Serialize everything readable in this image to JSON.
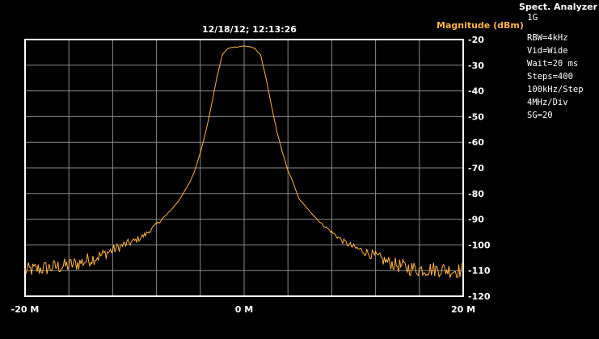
{
  "timestamp": "12/18/12; 12:13:26",
  "panel": {
    "title": "Spect. Analyzer",
    "subtitle": "1G",
    "settings": [
      "RBW=4kHz",
      "Vid=Wide",
      "Wait=20 ms",
      "Steps=400",
      "100kHz/Step",
      "4MHz/Div",
      "SG=20"
    ]
  },
  "colors": {
    "trace": "#ffb347",
    "grid": "#8a8a8a",
    "background": "#000000",
    "text": "#ffffff"
  },
  "chart_data": {
    "type": "line",
    "title": "",
    "xlabel": "",
    "ylabel": "Magnitude (dBm)",
    "xlim": [
      -20,
      20
    ],
    "ylim": [
      -120,
      -20
    ],
    "x_ticks": [
      {
        "value": -20,
        "label": "-20 M"
      },
      {
        "value": 0,
        "label": "0 M"
      },
      {
        "value": 20,
        "label": "20 M"
      }
    ],
    "y_ticks": [
      "-20",
      "-30",
      "-40",
      "-50",
      "-60",
      "-70",
      "-80",
      "-90",
      "-100",
      "-110",
      "-120"
    ],
    "x_divisions": 10,
    "y_divisions": 10,
    "grid": true,
    "series": [
      {
        "x": [
          -20,
          -19,
          -18,
          -17,
          -16,
          -15,
          -14,
          -13,
          -12,
          -11,
          -10,
          -9,
          -8,
          -7,
          -6,
          -5,
          -4.5,
          -4,
          -3.5,
          -3,
          -2.5,
          -2,
          -1.5,
          -1,
          -0.5,
          0,
          0.5,
          1,
          1.5,
          2,
          2.5,
          3,
          3.5,
          4,
          4.5,
          5,
          6,
          7,
          8,
          9,
          10,
          11,
          12,
          13,
          14,
          15,
          16,
          17,
          18,
          19,
          20
        ],
        "values": [
          -110,
          -109.5,
          -109,
          -108.5,
          -108,
          -107,
          -105.5,
          -104,
          -102,
          -100,
          -98.5,
          -96,
          -92,
          -88,
          -83,
          -76,
          -71,
          -64,
          -56,
          -46,
          -35,
          -26,
          -23.5,
          -23,
          -22.8,
          -22.5,
          -22.8,
          -23.5,
          -26,
          -35,
          -46,
          -56,
          -64,
          -71,
          -76,
          -82,
          -87,
          -91.5,
          -95,
          -98.5,
          -101,
          -102.5,
          -104.5,
          -106.5,
          -108,
          -109,
          -109.5,
          -109.5,
          -109.5,
          -110,
          -110
        ]
      }
    ]
  }
}
